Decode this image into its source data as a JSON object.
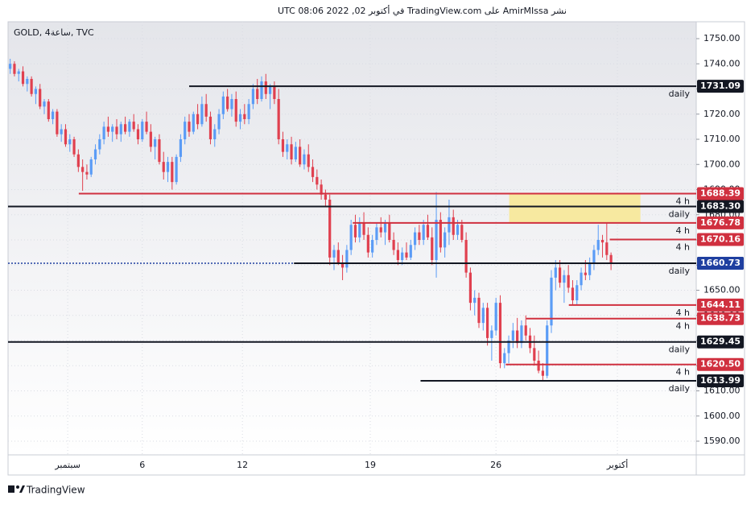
{
  "header": "نشر AmirMIssa على TradingView.com في أكتوبر 02, 2022 08:06 UTC",
  "footer": "TradingView",
  "chart_data": {
    "type": "candlestick",
    "symbol": "GOLD, 4ساعة, TVC",
    "up_color": "#5b9cf6",
    "down_color": "#e0404f",
    "xlim": [
      0,
      161.5
    ],
    "xticks": [
      {
        "value": 14,
        "label": "سبتمبر"
      },
      {
        "value": 31.5,
        "label": "6"
      },
      {
        "value": 55,
        "label": "12"
      },
      {
        "value": 85,
        "label": "19"
      },
      {
        "value": 114.5,
        "label": "26"
      },
      {
        "value": 143,
        "label": "أكتوبر"
      }
    ],
    "ylim": [
      1584.56,
      1756.72
    ],
    "yticks": [
      {
        "value": 1750,
        "label": "1750.00"
      },
      {
        "value": 1740,
        "label": "1740.00"
      },
      {
        "value": 1730,
        "label": "1730.00"
      },
      {
        "value": 1720,
        "label": "1720.00"
      },
      {
        "value": 1710,
        "label": "1710.00"
      },
      {
        "value": 1700,
        "label": "1700.00"
      },
      {
        "value": 1690,
        "label": "1690.00"
      },
      {
        "value": 1680,
        "label": "1680.00"
      },
      {
        "value": 1670,
        "label": "1670.00"
      },
      {
        "value": 1660,
        "label": "1660.00"
      },
      {
        "value": 1650,
        "label": "1650.00"
      },
      {
        "value": 1640,
        "label": "1640.00"
      },
      {
        "value": 1630,
        "label": "1630.00"
      },
      {
        "value": 1620,
        "label": "1620.00"
      },
      {
        "value": 1610,
        "label": "1610.00"
      },
      {
        "value": 1600,
        "label": "1600.00"
      },
      {
        "value": 1590,
        "label": "1590.00"
      }
    ],
    "grid": true,
    "ohlc": [
      [
        1738,
        1742,
        1736,
        1740
      ],
      [
        1740,
        1741,
        1735,
        1736
      ],
      [
        1736,
        1738,
        1733,
        1737
      ],
      [
        1737,
        1739,
        1731,
        1732
      ],
      [
        1732,
        1735,
        1729,
        1734
      ],
      [
        1734,
        1735,
        1727,
        1728
      ],
      [
        1728,
        1731,
        1724,
        1730
      ],
      [
        1730,
        1732,
        1722,
        1723
      ],
      [
        1723,
        1726,
        1720,
        1725
      ],
      [
        1725,
        1726,
        1717,
        1718
      ],
      [
        1718,
        1722,
        1716,
        1721
      ],
      [
        1721,
        1722,
        1711,
        1712
      ],
      [
        1712,
        1716,
        1709,
        1714
      ],
      [
        1714,
        1716,
        1707,
        1708
      ],
      [
        1708,
        1712,
        1705,
        1710
      ],
      [
        1710,
        1711,
        1703,
        1704
      ],
      [
        1704,
        1706,
        1697,
        1699
      ],
      [
        1699,
        1702,
        1689.5,
        1697
      ],
      [
        1697,
        1700,
        1694,
        1696
      ],
      [
        1696,
        1703,
        1695,
        1702
      ],
      [
        1702,
        1708,
        1700,
        1706
      ],
      [
        1706,
        1712,
        1704,
        1710
      ],
      [
        1710,
        1717,
        1708,
        1715
      ],
      [
        1715,
        1719,
        1711,
        1713
      ],
      [
        1713,
        1716,
        1709,
        1715
      ],
      [
        1715,
        1718,
        1710,
        1712
      ],
      [
        1712,
        1717,
        1709,
        1716
      ],
      [
        1716,
        1719,
        1712,
        1713
      ],
      [
        1713,
        1718,
        1711,
        1717
      ],
      [
        1717,
        1720,
        1713,
        1714
      ],
      [
        1714,
        1716,
        1708,
        1710
      ],
      [
        1710,
        1718,
        1709,
        1717
      ],
      [
        1717,
        1721,
        1712,
        1713
      ],
      [
        1713,
        1716,
        1705,
        1707
      ],
      [
        1707,
        1711,
        1702,
        1710
      ],
      [
        1710,
        1712,
        1700,
        1701
      ],
      [
        1701,
        1705,
        1694,
        1697
      ],
      [
        1697,
        1703,
        1693,
        1701
      ],
      [
        1701,
        1703,
        1690,
        1693
      ],
      [
        1693,
        1704,
        1692,
        1703
      ],
      [
        1703,
        1712,
        1701,
        1710
      ],
      [
        1710,
        1719,
        1708,
        1717
      ],
      [
        1717,
        1720,
        1711,
        1713
      ],
      [
        1713,
        1721,
        1712,
        1720
      ],
      [
        1720,
        1724,
        1714,
        1716
      ],
      [
        1716,
        1727,
        1715,
        1724
      ],
      [
        1724,
        1728,
        1717,
        1719
      ],
      [
        1719,
        1721,
        1708,
        1710
      ],
      [
        1710,
        1716,
        1707,
        1714
      ],
      [
        1714,
        1722,
        1712,
        1720
      ],
      [
        1720,
        1729,
        1718,
        1727
      ],
      [
        1727,
        1730,
        1721,
        1722
      ],
      [
        1722,
        1728,
        1719,
        1726
      ],
      [
        1726,
        1729,
        1715,
        1717
      ],
      [
        1717,
        1722,
        1714,
        1720
      ],
      [
        1720,
        1724,
        1716,
        1718
      ],
      [
        1718,
        1726,
        1716,
        1724
      ],
      [
        1724,
        1732,
        1722,
        1730
      ],
      [
        1730,
        1734,
        1724,
        1726
      ],
      [
        1726,
        1735,
        1725,
        1733
      ],
      [
        1733,
        1736,
        1726,
        1728
      ],
      [
        1728,
        1732,
        1722,
        1731
      ],
      [
        1731,
        1733,
        1724,
        1726
      ],
      [
        1726,
        1730,
        1708,
        1710
      ],
      [
        1710,
        1713,
        1703,
        1705
      ],
      [
        1705,
        1710,
        1702,
        1708
      ],
      [
        1708,
        1711,
        1700,
        1702
      ],
      [
        1702,
        1709,
        1701,
        1707
      ],
      [
        1707,
        1710,
        1699,
        1700
      ],
      [
        1700,
        1706,
        1698,
        1704
      ],
      [
        1704,
        1708,
        1697,
        1699
      ],
      [
        1699,
        1702,
        1693,
        1695
      ],
      [
        1695,
        1698,
        1690,
        1692
      ],
      [
        1692,
        1694,
        1686,
        1688
      ],
      [
        1688,
        1690,
        1683,
        1686
      ],
      [
        1686,
        1688,
        1660,
        1663
      ],
      [
        1663,
        1668,
        1658,
        1666
      ],
      [
        1666,
        1669,
        1660,
        1661
      ],
      [
        1661,
        1664,
        1654,
        1659
      ],
      [
        1659,
        1668,
        1657,
        1666
      ],
      [
        1666,
        1678,
        1664,
        1676
      ],
      [
        1676,
        1680,
        1669,
        1671
      ],
      [
        1671,
        1679,
        1669,
        1677
      ],
      [
        1677,
        1681,
        1670,
        1672
      ],
      [
        1672,
        1675,
        1663,
        1665
      ],
      [
        1665,
        1672,
        1663,
        1670
      ],
      [
        1670,
        1677,
        1668,
        1675
      ],
      [
        1675,
        1679,
        1671,
        1673
      ],
      [
        1673,
        1678,
        1668,
        1677
      ],
      [
        1677,
        1680,
        1669,
        1670
      ],
      [
        1670,
        1673,
        1664,
        1666
      ],
      [
        1666,
        1669,
        1660,
        1662
      ],
      [
        1662,
        1667,
        1660,
        1665
      ],
      [
        1665,
        1669,
        1662,
        1663
      ],
      [
        1663,
        1670,
        1662,
        1668
      ],
      [
        1668,
        1675,
        1666,
        1673
      ],
      [
        1673,
        1676,
        1668,
        1670
      ],
      [
        1670,
        1678,
        1668,
        1676
      ],
      [
        1676,
        1680,
        1670,
        1671
      ],
      [
        1671,
        1675,
        1660,
        1662
      ],
      [
        1662,
        1689,
        1655,
        1678
      ],
      [
        1678,
        1681,
        1665,
        1667
      ],
      [
        1667,
        1675,
        1663,
        1673
      ],
      [
        1673,
        1686,
        1668,
        1679
      ],
      [
        1679,
        1682,
        1670,
        1672
      ],
      [
        1672,
        1678,
        1670,
        1676
      ],
      [
        1676,
        1678,
        1669,
        1670
      ],
      [
        1670,
        1673,
        1655,
        1657
      ],
      [
        1657,
        1659,
        1642,
        1645
      ],
      [
        1645,
        1650,
        1640,
        1647
      ],
      [
        1647,
        1649,
        1635,
        1637
      ],
      [
        1637,
        1645,
        1634,
        1643
      ],
      [
        1643,
        1645,
        1628,
        1631
      ],
      [
        1631,
        1636,
        1622,
        1634
      ],
      [
        1634,
        1647,
        1632,
        1645
      ],
      [
        1645,
        1648,
        1619,
        1621
      ],
      [
        1621,
        1627,
        1619,
        1625
      ],
      [
        1625,
        1632,
        1621,
        1630
      ],
      [
        1630,
        1637,
        1627,
        1634
      ],
      [
        1634,
        1639,
        1627,
        1629
      ],
      [
        1629,
        1638,
        1627,
        1636
      ],
      [
        1636,
        1640,
        1630,
        1632
      ],
      [
        1632,
        1635,
        1625,
        1627
      ],
      [
        1627,
        1632,
        1620,
        1622
      ],
      [
        1622,
        1626,
        1617,
        1618
      ],
      [
        1618,
        1621,
        1614,
        1616
      ],
      [
        1616,
        1638,
        1615,
        1636
      ],
      [
        1636,
        1658,
        1633,
        1655
      ],
      [
        1655,
        1662,
        1650,
        1659
      ],
      [
        1659,
        1662,
        1651,
        1653
      ],
      [
        1653,
        1658,
        1645,
        1656
      ],
      [
        1656,
        1660,
        1649,
        1651
      ],
      [
        1651,
        1654,
        1644,
        1646
      ],
      [
        1646,
        1654,
        1644,
        1652
      ],
      [
        1652,
        1659,
        1650,
        1657
      ],
      [
        1657,
        1662,
        1654,
        1656
      ],
      [
        1656,
        1663,
        1654,
        1661
      ],
      [
        1661,
        1668,
        1658,
        1666
      ],
      [
        1666,
        1676,
        1664,
        1670
      ],
      [
        1670,
        1672,
        1663,
        1669
      ],
      [
        1669,
        1677,
        1662,
        1664
      ],
      [
        1664,
        1665,
        1658,
        1661
      ]
    ],
    "zone": {
      "from": 117.6,
      "to": 148.4,
      "top": 1688.39,
      "bottom": 1676.78,
      "color": "#f7e9a0"
    },
    "levels": [
      {
        "price": 1731.09,
        "label": "1731.09",
        "timeframe": "daily",
        "color": "#131722",
        "start": 42.5
      },
      {
        "price": 1688.39,
        "label": "1688.39",
        "timeframe": "4 h",
        "color": "#d0303f",
        "start": 16.6
      },
      {
        "price": 1683.3,
        "label": "1683.30",
        "timeframe": "daily",
        "color": "#131722",
        "start": 0
      },
      {
        "price": 1676.78,
        "label": "1676.78",
        "timeframe": "4 h",
        "color": "#d0303f",
        "start": 80.9
      },
      {
        "price": 1670.16,
        "label": "1670.16",
        "timeframe": "4 h",
        "color": "#d0303f",
        "start": 141.2
      },
      {
        "price": 1660.73,
        "label": "1660.73",
        "timeframe": "daily",
        "color": "#131722",
        "start": 67.1
      },
      {
        "price": 1644.11,
        "label": "1644.11",
        "timeframe": "4 h",
        "color": "#d0303f",
        "start": 131.6
      },
      {
        "price": 1638.73,
        "label": "1638.73",
        "timeframe": "4 h",
        "color": "#d0303f",
        "start": 121.6
      },
      {
        "price": 1629.45,
        "label": "1629.45",
        "timeframe": "daily",
        "color": "#131722",
        "start": 0
      },
      {
        "price": 1620.5,
        "label": "1620.50",
        "timeframe": "4 h",
        "color": "#d0303f",
        "start": 116.8
      },
      {
        "price": 1613.99,
        "label": "1613.99",
        "timeframe": "daily",
        "color": "#131722",
        "start": 96.8
      }
    ],
    "last_price": {
      "value": 1660.73,
      "label": "1660.73",
      "color": "#1f3fa0"
    }
  }
}
